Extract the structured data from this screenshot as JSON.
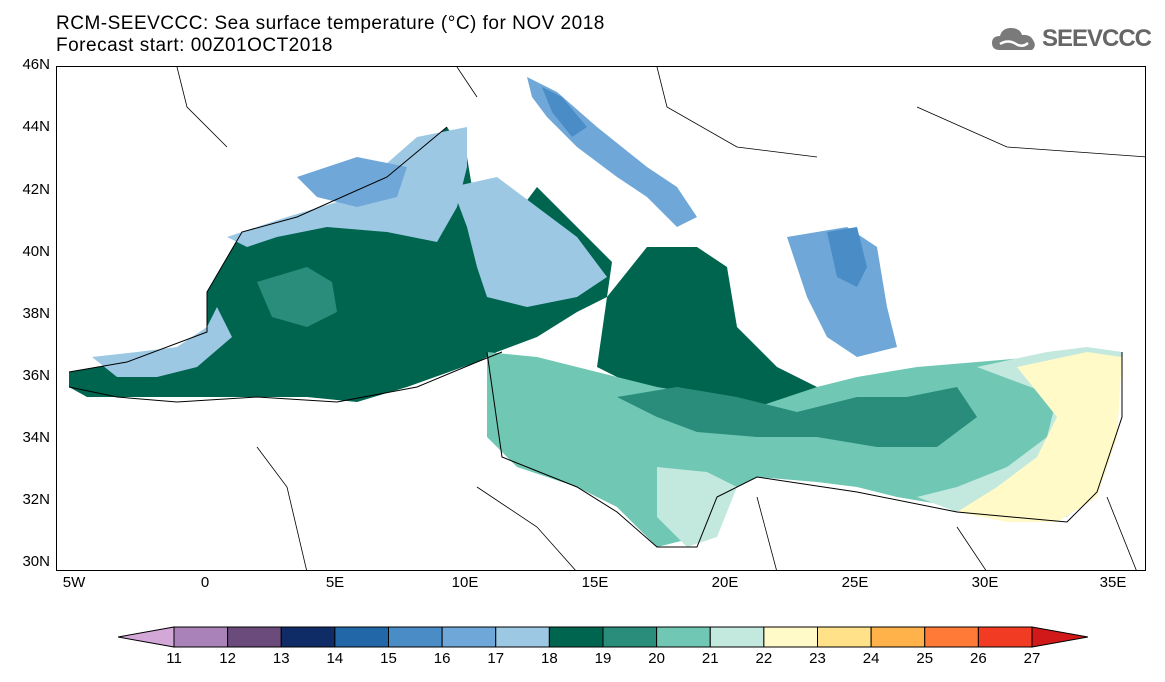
{
  "title": {
    "line1": "RCM-SEEVCCC: Sea surface temperature (°C) for NOV 2018",
    "line2": "Forecast start: 00Z01OCT2018"
  },
  "logo": {
    "text": "SEEVCCC",
    "icon": "cloud-icon"
  },
  "map": {
    "lat_labels": [
      "46N",
      "44N",
      "42N",
      "40N",
      "38N",
      "36N",
      "34N",
      "32N",
      "30N"
    ],
    "lon_labels": [
      "5W",
      "0",
      "5E",
      "10E",
      "15E",
      "20E",
      "25E",
      "30E",
      "35E"
    ]
  },
  "colorbar": {
    "labels": [
      "11",
      "12",
      "13",
      "14",
      "15",
      "16",
      "17",
      "18",
      "19",
      "20",
      "21",
      "22",
      "23",
      "24",
      "25",
      "26",
      "27"
    ],
    "colors": [
      "#d3a8d8",
      "#a982b9",
      "#6a4b7c",
      "#0f2c66",
      "#2268a8",
      "#4a8cc6",
      "#6fa8d8",
      "#9cc8e4",
      "#00654f",
      "#2a8d7c",
      "#6fc7b4",
      "#c3e8de",
      "#fffac7",
      "#ffe189",
      "#ffb14a",
      "#ff7a36",
      "#f23b23",
      "#d21919"
    ]
  }
}
